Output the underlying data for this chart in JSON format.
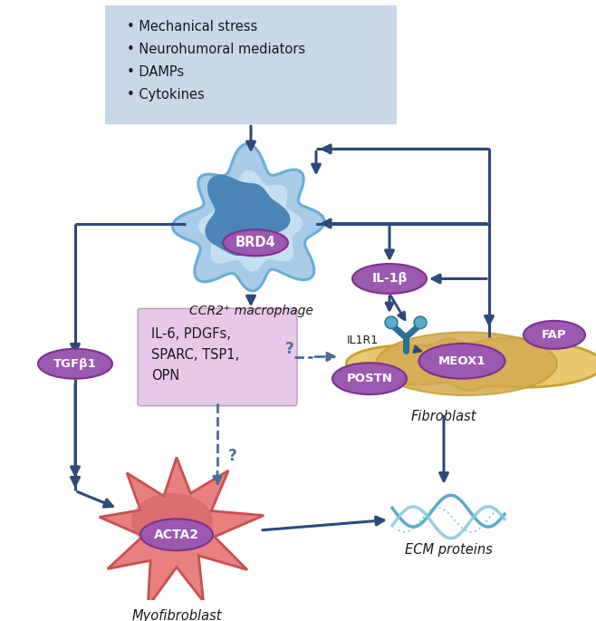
{
  "bg_color": "#ffffff",
  "arrow_color": "#2d4a7a",
  "purple_color": "#9b59b0",
  "purple_border": "#7d3090",
  "macrophage_outer": "#6aadd5",
  "macrophage_mid": "#a8cce8",
  "macrophage_light": "#c5dff0",
  "macrophage_nucleus": "#4a85b5",
  "fibroblast_color": "#e8c870",
  "fibroblast_border": "#c8a030",
  "fibroblast_inner": "#d4aa50",
  "myofibroblast_color": "#e88080",
  "myofibroblast_border": "#c85050",
  "myofibroblast_inner": "#d06060",
  "il6_box_color": "#e8c8e8",
  "il6_box_border": "#c098c0",
  "stimulus_box_color": "#c8d8e8",
  "receptor_color": "#5aabcc",
  "receptor_dark": "#2a7090",
  "text_dark": "#1a1a1a",
  "dashed_color": "#4a6a9a",
  "ecm_color1": "#5aabcc",
  "ecm_color2": "#88c8e0",
  "stimulus_items": [
    "Mechanical stress",
    "Neurohumoral mediators",
    "DAMPs",
    "Cytokines"
  ],
  "il6_text": "IL-6, PDGFs,\nSPARC, TSP1,\nOPN"
}
